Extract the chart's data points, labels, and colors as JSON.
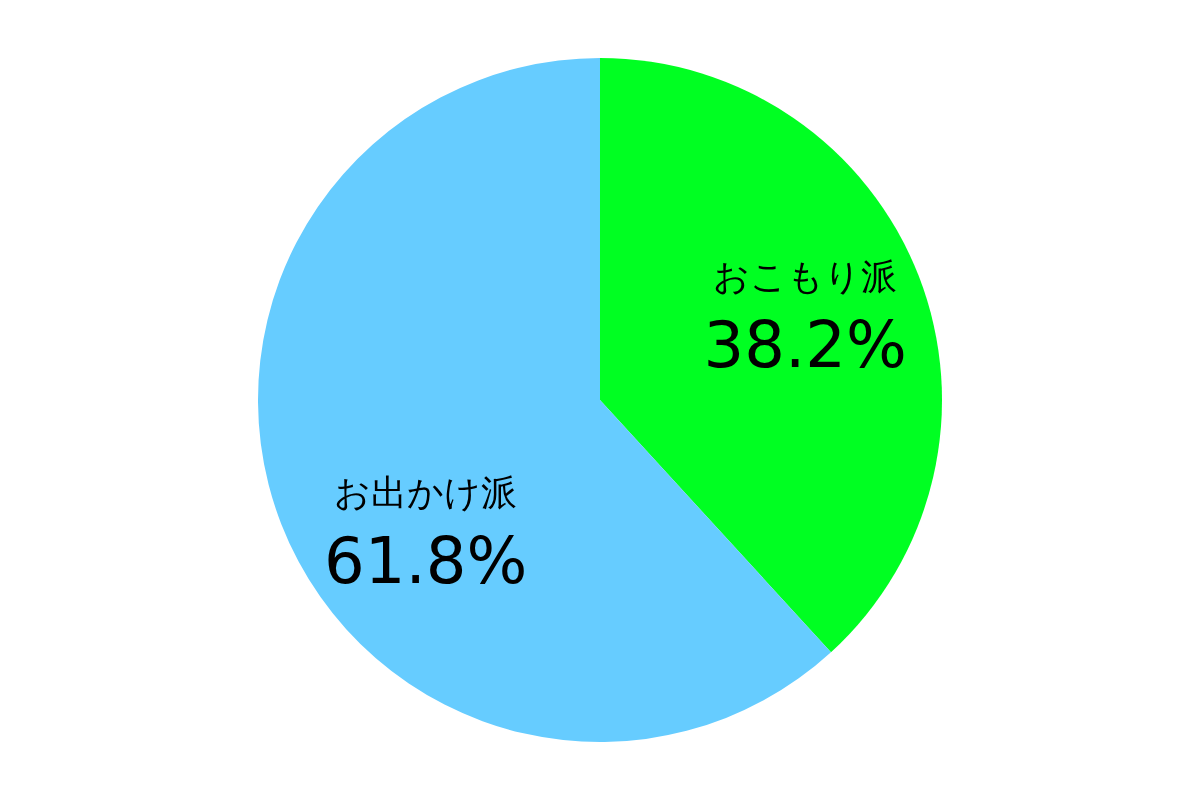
{
  "chart_data": {
    "type": "pie",
    "categories": [
      "おこもり派",
      "お出かけ派"
    ],
    "values": [
      38.2,
      61.8
    ],
    "colors": [
      "#00ff22",
      "#66ccff"
    ],
    "value_labels": [
      "38.2%",
      "61.8%"
    ]
  }
}
